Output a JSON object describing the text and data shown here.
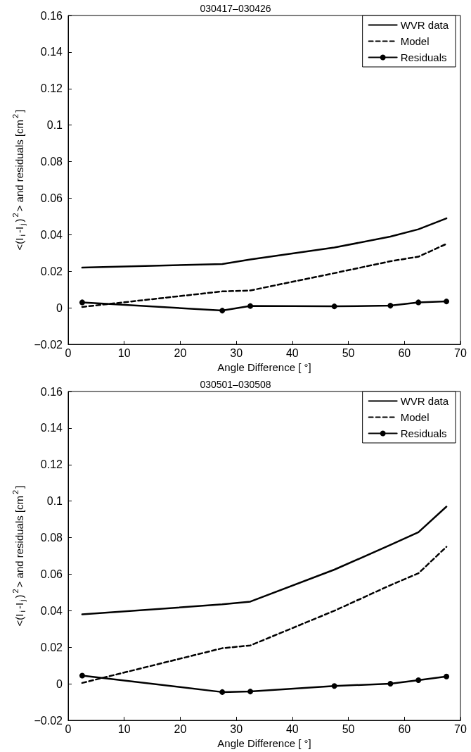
{
  "chart_data": [
    {
      "type": "line",
      "title": "030417–030426",
      "xlabel": "Angle Difference [ °]",
      "ylabel": "<(I$_{i}$-I$_{j}$)$^{2}$> and residuals [cm$^{2}$]",
      "x": [
        2.5,
        27.5,
        32.5,
        47.5,
        57.5,
        62.5,
        67.5
      ],
      "series": [
        {
          "name": "WVR data",
          "color": "#000000",
          "line_style": "solid",
          "marker": "none",
          "values": [
            0.022,
            0.024,
            0.0265,
            0.033,
            0.039,
            0.043,
            0.049
          ]
        },
        {
          "name": "Model",
          "color": "#000000",
          "line_style": "dashed",
          "marker": "none",
          "values": [
            0.0005,
            0.009,
            0.0095,
            0.019,
            0.0255,
            0.028,
            0.035
          ]
        },
        {
          "name": "Residuals",
          "color": "#000000",
          "line_style": "solid",
          "marker": "circle",
          "values": [
            0.003,
            -0.0015,
            0.001,
            0.0008,
            0.0012,
            0.003,
            0.0035
          ]
        }
      ],
      "xlim": [
        0,
        70
      ],
      "xticks": [
        0,
        10,
        20,
        30,
        40,
        50,
        60,
        70
      ],
      "ylim": [
        -0.02,
        0.16
      ],
      "yticks": [
        -0.02,
        0,
        0.02,
        0.04,
        0.06,
        0.08,
        0.1,
        0.12,
        0.14,
        0.16
      ],
      "grid": false,
      "legend": "top right"
    },
    {
      "type": "line",
      "title": "030501–030508",
      "xlabel": "Angle Difference [ °]",
      "ylabel": "<(I$_{i}$-I$_{j}$)$^{2}$> and residuals [cm$^{2}$]",
      "x": [
        2.5,
        27.5,
        32.5,
        47.5,
        57.5,
        62.5,
        67.5
      ],
      "series": [
        {
          "name": "WVR data",
          "color": "#000000",
          "line_style": "solid",
          "marker": "none",
          "values": [
            0.038,
            0.0435,
            0.045,
            0.0625,
            0.076,
            0.083,
            0.097
          ]
        },
        {
          "name": "Model",
          "color": "#000000",
          "line_style": "dashed",
          "marker": "none",
          "values": [
            0.0005,
            0.0195,
            0.021,
            0.04,
            0.054,
            0.0605,
            0.075
          ]
        },
        {
          "name": "Residuals",
          "color": "#000000",
          "line_style": "solid",
          "marker": "circle",
          "values": [
            0.0045,
            -0.0045,
            -0.0042,
            -0.0012,
            0.0001,
            0.002,
            0.004
          ]
        }
      ],
      "xlim": [
        0,
        70
      ],
      "xticks": [
        0,
        10,
        20,
        30,
        40,
        50,
        60,
        70
      ],
      "ylim": [
        -0.02,
        0.16
      ],
      "yticks": [
        -0.02,
        0,
        0.02,
        0.04,
        0.06,
        0.08,
        0.1,
        0.12,
        0.14,
        0.16
      ],
      "grid": false,
      "legend": "top right"
    }
  ]
}
